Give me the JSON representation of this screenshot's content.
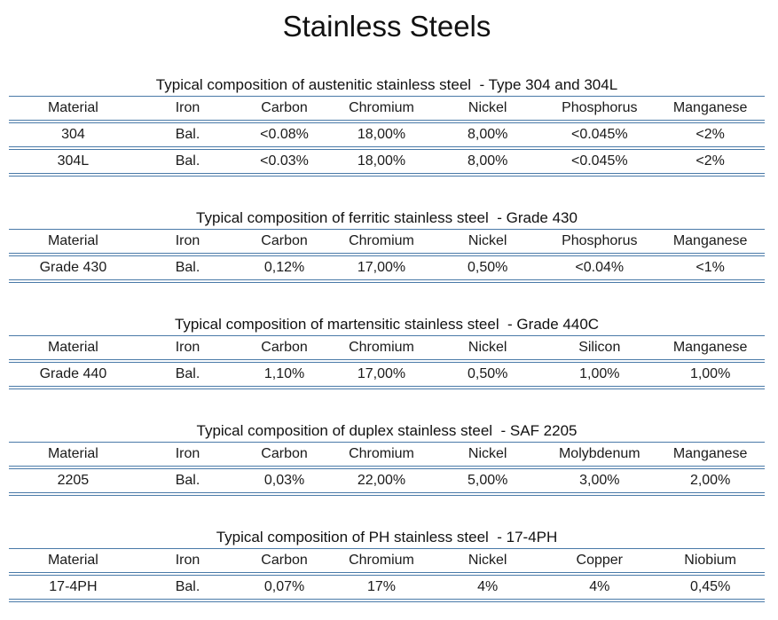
{
  "page": {
    "title": "Stainless Steels"
  },
  "colors": {
    "rule_blue": "#4a7aa8",
    "text": "#1a1a1a",
    "background": "#ffffff"
  },
  "tables": [
    {
      "caption": "Typical composition of austenitic stainless steel  - Type 304 and 304L",
      "headers": [
        "Material",
        "Iron",
        "Carbon",
        "Chromium",
        "Nickel",
        "Phosphorus",
        "Manganese"
      ],
      "rows": [
        [
          "304",
          "Bal.",
          "<0.08%",
          "18,00%",
          "8,00%",
          "<0.045%",
          "<2%"
        ],
        [
          "304L",
          "Bal.",
          "<0.03%",
          "18,00%",
          "8,00%",
          "<0.045%",
          "<2%"
        ]
      ]
    },
    {
      "caption": "Typical composition of ferritic stainless steel  - Grade 430",
      "headers": [
        "Material",
        "Iron",
        "Carbon",
        "Chromium",
        "Nickel",
        "Phosphorus",
        "Manganese"
      ],
      "rows": [
        [
          "Grade 430",
          "Bal.",
          "0,12%",
          "17,00%",
          "0,50%",
          "<0.04%",
          "<1%"
        ]
      ]
    },
    {
      "caption": "Typical composition of martensitic stainless steel  - Grade 440C",
      "headers": [
        "Material",
        "Iron",
        "Carbon",
        "Chromium",
        "Nickel",
        "Silicon",
        "Manganese"
      ],
      "rows": [
        [
          "Grade 440",
          "Bal.",
          "1,10%",
          "17,00%",
          "0,50%",
          "1,00%",
          "1,00%"
        ]
      ]
    },
    {
      "caption": "Typical composition of duplex stainless steel  - SAF 2205",
      "headers": [
        "Material",
        "Iron",
        "Carbon",
        "Chromium",
        "Nickel",
        "Molybdenum",
        "Manganese"
      ],
      "rows": [
        [
          "2205",
          "Bal.",
          "0,03%",
          "22,00%",
          "5,00%",
          "3,00%",
          "2,00%"
        ]
      ]
    },
    {
      "caption": "Typical composition of PH stainless steel  - 17-4PH",
      "headers": [
        "Material",
        "Iron",
        "Carbon",
        "Chromium",
        "Nickel",
        "Copper",
        "Niobium"
      ],
      "rows": [
        [
          "17-4PH",
          "Bal.",
          "0,07%",
          "17%",
          "4%",
          "4%",
          "0,45%"
        ]
      ]
    }
  ]
}
